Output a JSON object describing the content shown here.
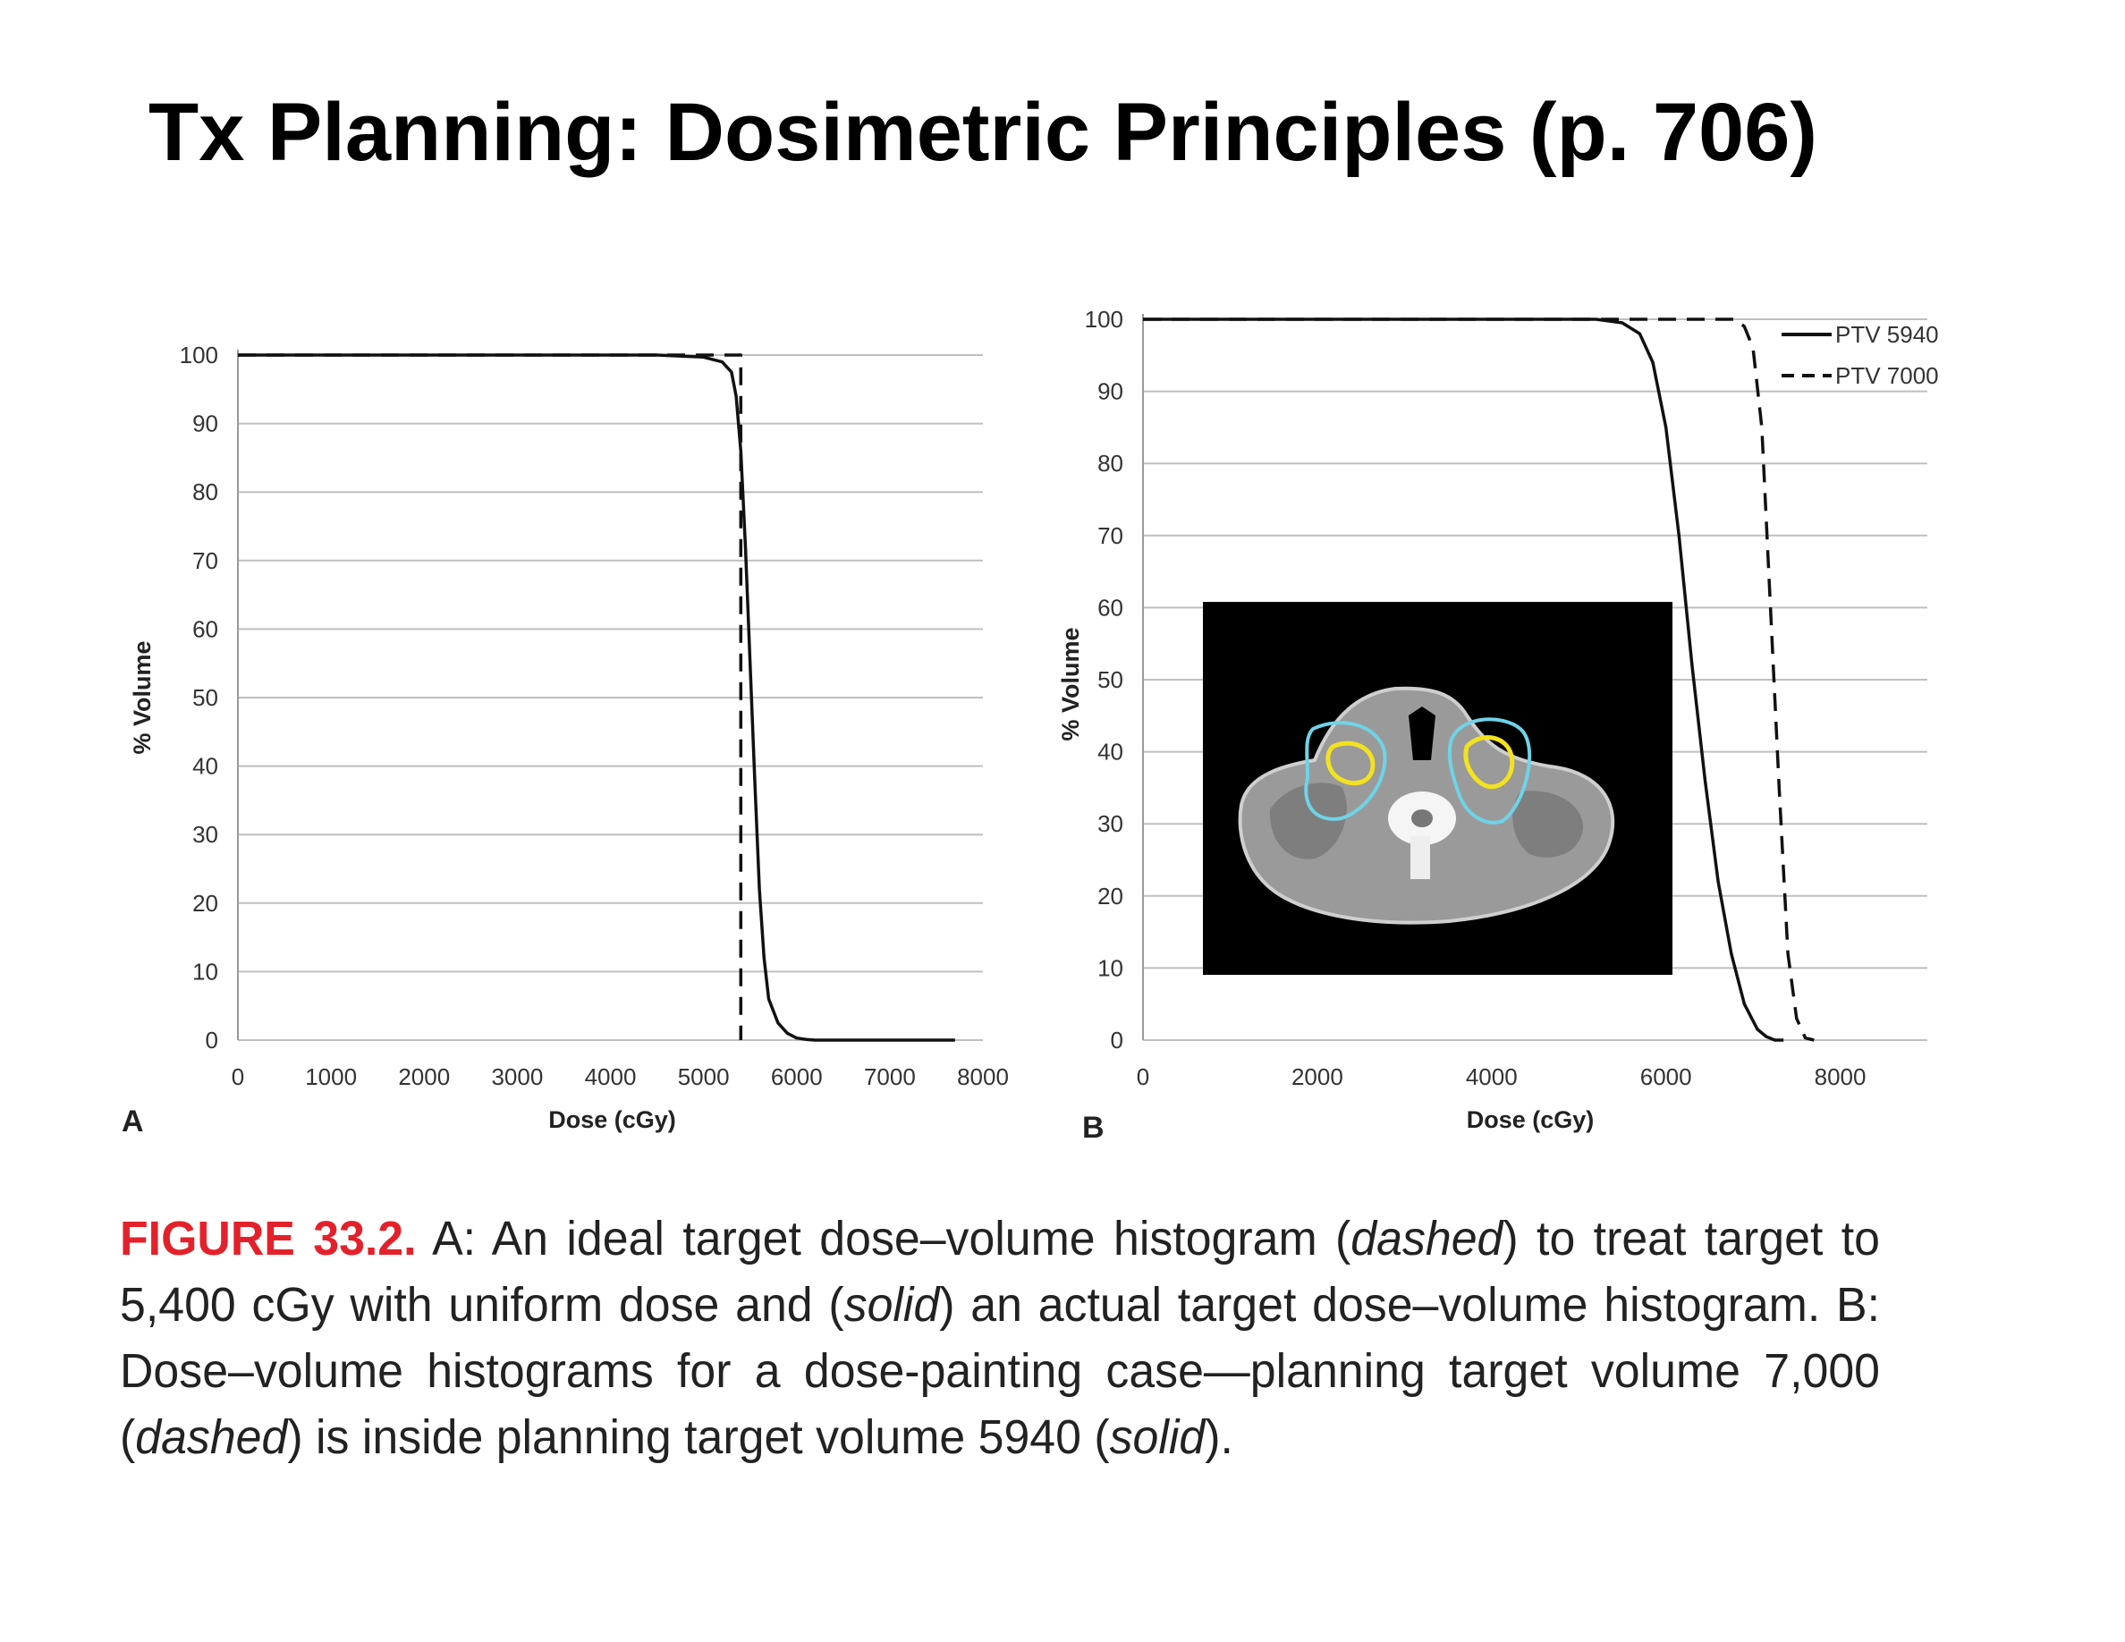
{
  "slide": {
    "title": "Tx Planning: Dosimetric Principles (p. 706)"
  },
  "chart_data": [
    {
      "panel_label": "A",
      "type": "line",
      "xlabel": "Dose (cGy)",
      "ylabel": "% Volume",
      "xlim": [
        0,
        8000
      ],
      "ylim": [
        0,
        100
      ],
      "xticks": [
        0,
        1000,
        2000,
        3000,
        4000,
        5000,
        6000,
        7000,
        8000
      ],
      "yticks": [
        0,
        10,
        20,
        30,
        40,
        50,
        60,
        70,
        80,
        90,
        100
      ],
      "grid": "horizontal",
      "series": [
        {
          "style": "dashed",
          "x": [
            0,
            5400,
            5400
          ],
          "y": [
            100,
            100,
            0
          ]
        },
        {
          "style": "solid",
          "x": [
            0,
            4500,
            5000,
            5200,
            5300,
            5350,
            5400,
            5450,
            5500,
            5550,
            5600,
            5650,
            5700,
            5800,
            5900,
            6000,
            6100,
            6200,
            7700
          ],
          "y": [
            100,
            100,
            99.7,
            99,
            97.5,
            94,
            86,
            72,
            55,
            38,
            22,
            12,
            6,
            2.5,
            1,
            0.3,
            0.1,
            0,
            0
          ]
        }
      ]
    },
    {
      "panel_label": "B",
      "type": "line",
      "xlabel": "Dose (cGy)",
      "ylabel": "% Volume",
      "xlim": [
        0,
        9000
      ],
      "ylim": [
        0,
        100
      ],
      "xticks": [
        0,
        2000,
        4000,
        6000,
        8000
      ],
      "yticks": [
        0,
        10,
        20,
        30,
        40,
        50,
        60,
        70,
        80,
        90,
        100
      ],
      "grid": "horizontal",
      "legend_position": "top-right",
      "series": [
        {
          "name": "PTV 5940",
          "style": "solid",
          "x": [
            0,
            5200,
            5500,
            5700,
            5850,
            6000,
            6150,
            6300,
            6450,
            6600,
            6750,
            6900,
            7050,
            7150,
            7250,
            7350
          ],
          "y": [
            100,
            100,
            99.5,
            98,
            94,
            85,
            70,
            52,
            36,
            22,
            12,
            5,
            1.5,
            0.5,
            0,
            0
          ]
        },
        {
          "name": "PTV 7000",
          "style": "dashed",
          "x": [
            0,
            6800,
            6900,
            7000,
            7100,
            7200,
            7300,
            7400,
            7500,
            7600,
            7700
          ],
          "y": [
            100,
            100,
            99,
            96,
            85,
            60,
            35,
            12,
            3,
            0.3,
            0
          ]
        }
      ]
    }
  ],
  "inset": {
    "description_icon": "ct-axial-neck-icon",
    "contour_colors": {
      "ptv_5940": "#6fd3e6",
      "ptv_7000": "#f3e21f"
    }
  },
  "caption": {
    "label": "FIGURE 33.2.",
    "t1": " A: An ideal target dose–volume histogram (",
    "i1": "dashed",
    "t2": ") to treat target to 5,400 cGy with uniform dose and (",
    "i2": "solid",
    "t3": ") an actual target dose–volume histogram. B: Dose–volume histograms for a dose-painting case—planning target volume 7,000 (",
    "i3": "dashed",
    "t4": ") is inside planning target volume 5940 (",
    "i4": "solid",
    "t5": ")."
  },
  "colors": {
    "caption_label": "#e3212b",
    "grid": "#bfbfbf",
    "line": "#111111"
  }
}
